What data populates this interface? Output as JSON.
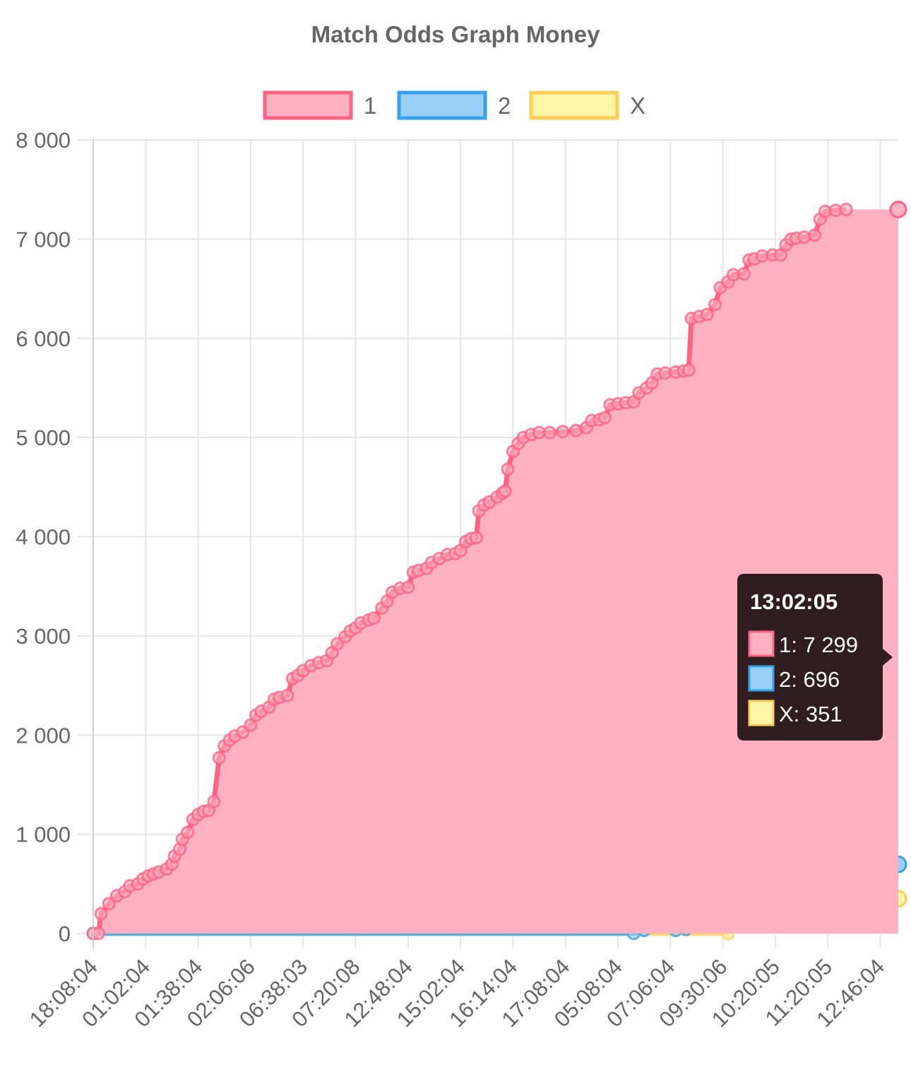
{
  "chart_data": {
    "type": "area",
    "title": "Match Odds Graph Money",
    "ylim": [
      0,
      8000
    ],
    "yticks": [
      "0",
      "1 000",
      "2 000",
      "3 000",
      "4 000",
      "5 000",
      "6 000",
      "7 000",
      "8 000"
    ],
    "x_tick_labels": [
      "18:08:04",
      "01:02:04",
      "01:38:04",
      "02:06:06",
      "06:38:03",
      "07:20:08",
      "12:48:04",
      "15:02:04",
      "16:14:04",
      "17:08:04",
      "05:08:04",
      "07:06:04",
      "09:30:06",
      "10:20:05",
      "11:20:05",
      "12:46:04"
    ],
    "x_range": [
      0,
      15.35
    ],
    "grid": true,
    "legend_position": "top",
    "series": [
      {
        "name": "1",
        "color": "#ff6384",
        "fill": "#ffb0c1",
        "points": [
          [
            0,
            0
          ],
          [
            0.1,
            0
          ],
          [
            0.15,
            200
          ],
          [
            0.3,
            300
          ],
          [
            0.45,
            380
          ],
          [
            0.6,
            420
          ],
          [
            0.7,
            480
          ],
          [
            0.85,
            500
          ],
          [
            0.95,
            550
          ],
          [
            1.05,
            580
          ],
          [
            1.15,
            600
          ],
          [
            1.25,
            620
          ],
          [
            1.4,
            650
          ],
          [
            1.5,
            700
          ],
          [
            1.55,
            780
          ],
          [
            1.65,
            850
          ],
          [
            1.7,
            950
          ],
          [
            1.8,
            1020
          ],
          [
            1.9,
            1150
          ],
          [
            2.0,
            1200
          ],
          [
            2.1,
            1230
          ],
          [
            2.2,
            1240
          ],
          [
            2.3,
            1330
          ],
          [
            2.4,
            1770
          ],
          [
            2.5,
            1890
          ],
          [
            2.6,
            1950
          ],
          [
            2.7,
            1990
          ],
          [
            2.85,
            2030
          ],
          [
            3.0,
            2100
          ],
          [
            3.1,
            2200
          ],
          [
            3.2,
            2240
          ],
          [
            3.35,
            2280
          ],
          [
            3.45,
            2360
          ],
          [
            3.55,
            2380
          ],
          [
            3.7,
            2400
          ],
          [
            3.8,
            2570
          ],
          [
            3.9,
            2600
          ],
          [
            4.0,
            2650
          ],
          [
            4.15,
            2700
          ],
          [
            4.3,
            2730
          ],
          [
            4.45,
            2750
          ],
          [
            4.55,
            2830
          ],
          [
            4.65,
            2920
          ],
          [
            4.8,
            2990
          ],
          [
            4.9,
            3050
          ],
          [
            5.0,
            3080
          ],
          [
            5.1,
            3130
          ],
          [
            5.25,
            3160
          ],
          [
            5.35,
            3180
          ],
          [
            5.5,
            3280
          ],
          [
            5.6,
            3350
          ],
          [
            5.7,
            3440
          ],
          [
            5.85,
            3480
          ],
          [
            6.0,
            3490
          ],
          [
            6.1,
            3640
          ],
          [
            6.2,
            3660
          ],
          [
            6.35,
            3680
          ],
          [
            6.45,
            3740
          ],
          [
            6.6,
            3780
          ],
          [
            6.75,
            3820
          ],
          [
            6.9,
            3830
          ],
          [
            7.0,
            3860
          ],
          [
            7.1,
            3950
          ],
          [
            7.2,
            3980
          ],
          [
            7.3,
            3990
          ],
          [
            7.35,
            4260
          ],
          [
            7.45,
            4320
          ],
          [
            7.55,
            4350
          ],
          [
            7.7,
            4400
          ],
          [
            7.8,
            4440
          ],
          [
            7.85,
            4460
          ],
          [
            7.9,
            4680
          ],
          [
            8.0,
            4860
          ],
          [
            8.1,
            4940
          ],
          [
            8.2,
            5000
          ],
          [
            8.35,
            5030
          ],
          [
            8.5,
            5050
          ],
          [
            8.7,
            5050
          ],
          [
            8.95,
            5060
          ],
          [
            9.2,
            5070
          ],
          [
            9.4,
            5100
          ],
          [
            9.5,
            5170
          ],
          [
            9.65,
            5180
          ],
          [
            9.75,
            5200
          ],
          [
            9.85,
            5330
          ],
          [
            10.0,
            5340
          ],
          [
            10.15,
            5350
          ],
          [
            10.3,
            5360
          ],
          [
            10.4,
            5450
          ],
          [
            10.55,
            5500
          ],
          [
            10.65,
            5550
          ],
          [
            10.75,
            5640
          ],
          [
            10.9,
            5650
          ],
          [
            11.1,
            5660
          ],
          [
            11.25,
            5670
          ],
          [
            11.35,
            5680
          ],
          [
            11.4,
            6200
          ],
          [
            11.55,
            6220
          ],
          [
            11.7,
            6240
          ],
          [
            11.85,
            6340
          ],
          [
            11.95,
            6510
          ],
          [
            12.1,
            6570
          ],
          [
            12.2,
            6640
          ],
          [
            12.4,
            6650
          ],
          [
            12.5,
            6790
          ],
          [
            12.6,
            6800
          ],
          [
            12.75,
            6830
          ],
          [
            12.95,
            6840
          ],
          [
            13.1,
            6840
          ],
          [
            13.2,
            6940
          ],
          [
            13.3,
            7000
          ],
          [
            13.4,
            7010
          ],
          [
            13.55,
            7020
          ],
          [
            13.75,
            7040
          ],
          [
            13.85,
            7200
          ],
          [
            13.95,
            7280
          ],
          [
            14.15,
            7290
          ],
          [
            14.35,
            7299
          ]
        ]
      },
      {
        "name": "2",
        "color": "#36a2eb",
        "fill": "#9ad0f5",
        "points": [
          [
            0,
            0
          ],
          [
            10.3,
            0
          ],
          [
            10.5,
            30
          ],
          [
            11.1,
            30
          ],
          [
            11.3,
            40
          ],
          [
            11.45,
            270
          ],
          [
            11.55,
            330
          ],
          [
            11.7,
            420
          ],
          [
            11.85,
            440
          ],
          [
            11.95,
            460
          ],
          [
            12.1,
            560
          ],
          [
            12.2,
            660
          ],
          [
            12.4,
            670
          ],
          [
            12.6,
            670
          ],
          [
            12.8,
            680
          ],
          [
            13.0,
            690
          ],
          [
            13.3,
            690
          ],
          [
            13.6,
            695
          ],
          [
            14.0,
            696
          ],
          [
            14.35,
            696
          ]
        ]
      },
      {
        "name": "X",
        "color": "#ffce56",
        "fill": "#fff5a8",
        "points": [
          [
            0,
            0
          ],
          [
            12.1,
            0
          ],
          [
            12.2,
            170
          ],
          [
            12.4,
            190
          ],
          [
            12.6,
            200
          ],
          [
            12.8,
            210
          ],
          [
            13.0,
            230
          ],
          [
            13.2,
            260
          ],
          [
            13.4,
            290
          ],
          [
            13.6,
            310
          ],
          [
            13.8,
            320
          ],
          [
            14.0,
            330
          ],
          [
            14.2,
            340
          ],
          [
            14.35,
            351
          ]
        ]
      }
    ],
    "tooltip": {
      "title": "13:02:05",
      "lines": [
        "1: 7 299",
        "2: 696",
        "X: 351"
      ]
    }
  }
}
